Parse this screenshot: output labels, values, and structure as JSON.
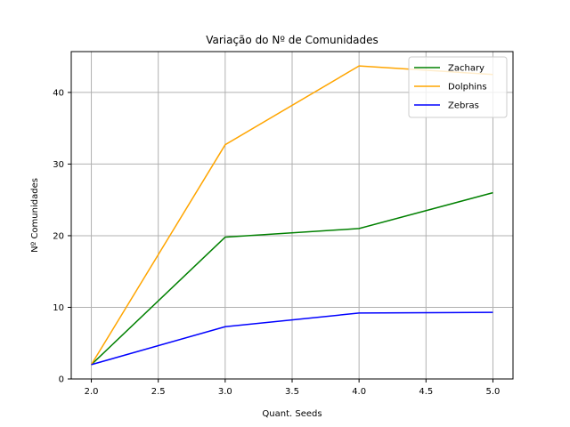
{
  "chart_data": {
    "type": "line",
    "title": "Variação do Nº de Comunidades",
    "xlabel": "Quant. Seeds",
    "ylabel": "Nº Comunidades",
    "x": [
      2.0,
      3.0,
      4.0,
      5.0
    ],
    "xlim": [
      1.85,
      5.15
    ],
    "ylim": [
      0,
      45.7
    ],
    "xticks": [
      "2.0",
      "2.5",
      "3.0",
      "3.5",
      "4.0",
      "4.5",
      "5.0"
    ],
    "yticks": [
      "0",
      "10",
      "20",
      "30",
      "40"
    ],
    "grid": true,
    "legend_position": "top-right",
    "series": [
      {
        "name": "Zachary",
        "values": [
          2.0,
          19.8,
          21.0,
          26.0
        ],
        "color": "#008000"
      },
      {
        "name": "Dolphins",
        "values": [
          2.0,
          32.7,
          43.7,
          42.5
        ],
        "color": "#ffa500"
      },
      {
        "name": "Zebras",
        "values": [
          2.0,
          7.3,
          9.2,
          9.3
        ],
        "color": "#0000ff"
      }
    ]
  }
}
